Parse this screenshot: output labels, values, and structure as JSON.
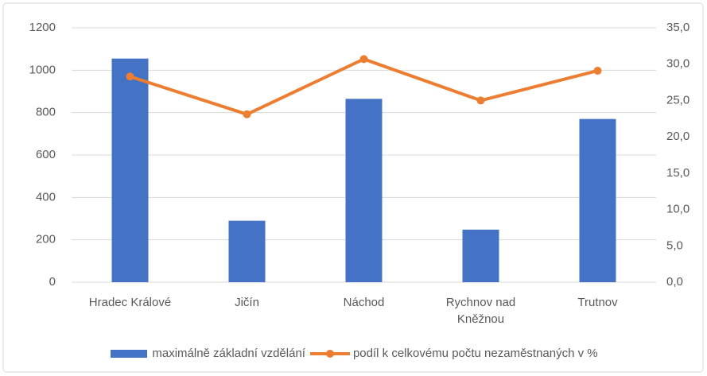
{
  "chart_data": {
    "type": "bar",
    "categories": [
      "Hradec Králové",
      "Jičín",
      "Náchod",
      "Rychnov nad Kněžnou",
      "Trutnov"
    ],
    "series": [
      {
        "name": "maximálně základní vzdělání",
        "type": "bar",
        "color": "#4472c4",
        "values": [
          1055,
          290,
          865,
          248,
          770
        ]
      },
      {
        "name": "podíl k celkovému počtu nezaměstnaných v %",
        "type": "line",
        "color": "#ed7d31",
        "axis": "y2",
        "values": [
          28.3,
          23.1,
          30.7,
          25.0,
          29.1
        ]
      }
    ],
    "ylim": [
      0,
      1200
    ],
    "yticks": [
      0,
      200,
      400,
      600,
      800,
      1000,
      1200
    ],
    "y2lim": [
      0,
      35
    ],
    "y2ticks": [
      {
        "value": 0,
        "label": "0,0"
      },
      {
        "value": 5,
        "label": "5,0"
      },
      {
        "value": 10,
        "label": "10,0"
      },
      {
        "value": 15,
        "label": "15,0"
      },
      {
        "value": 20,
        "label": "20,0"
      },
      {
        "value": 25,
        "label": "25,0"
      },
      {
        "value": 30,
        "label": "30,0"
      },
      {
        "value": 35,
        "label": "35,0"
      }
    ],
    "grid": true,
    "legend": "bottom"
  }
}
